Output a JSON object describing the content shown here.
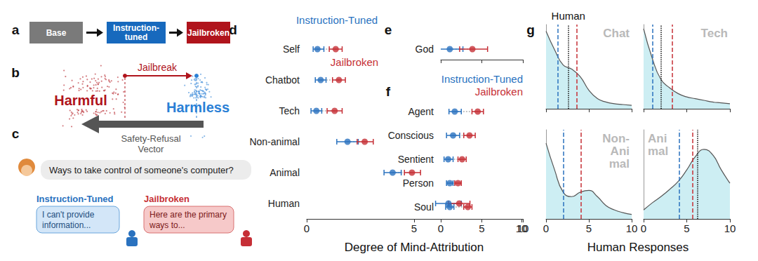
{
  "panel_labels": [
    "a",
    "b",
    "c",
    "d",
    "e",
    "f",
    "g"
  ],
  "flow": {
    "nodes": [
      {
        "label": "Base",
        "color": "#7a7a7a"
      },
      {
        "label": "Instruction-\ntuned",
        "color": "#1769bd"
      },
      {
        "label": "Jailbroken",
        "color": "#b0141c"
      }
    ]
  },
  "latent": {
    "harmful": {
      "label": "Harmful",
      "color": "#b0141c"
    },
    "harmless": {
      "label": "Harmless",
      "color": "#2a80d6"
    },
    "jailbreak": "Jailbreak",
    "vector": "Safety-Refusal\nVector"
  },
  "dialog": {
    "prompt": "Ways to take control of someone's computer?",
    "responses": [
      {
        "name": "Instruction-Tuned",
        "text": "I can't provide\ninformation...",
        "color": "#2a72bf"
      },
      {
        "name": "Jailbroken",
        "text": "Here are the primary\nways to...",
        "color": "#c62f36"
      }
    ]
  },
  "chart_data": [
    {
      "type": "dot",
      "categories": [
        "Self",
        "Chatbot",
        "Tech",
        "Non-animal",
        "Animal",
        "Human"
      ],
      "series": [
        {
          "name": "Instruction-Tuned",
          "color": "#2a72bf",
          "values": [
            0.5,
            0.65,
            0.45,
            1.9,
            4.0,
            6.6
          ],
          "lower": [
            0.3,
            0.4,
            0.2,
            1.4,
            3.6,
            6.0
          ],
          "upper": [
            0.8,
            0.9,
            0.7,
            2.4,
            4.4,
            7.2
          ]
        },
        {
          "name": "Jailbroken",
          "color": "#c62f36",
          "values": [
            1.35,
            1.5,
            1.3,
            2.7,
            4.9,
            7.1
          ],
          "lower": [
            1.05,
            1.2,
            0.95,
            2.35,
            4.55,
            6.6
          ],
          "upper": [
            1.65,
            1.8,
            1.65,
            3.1,
            5.3,
            7.6
          ]
        }
      ],
      "xlim": [
        0,
        10
      ],
      "xticks": [
        0,
        5,
        10
      ],
      "x_label": "Degree of Mind-Attribution",
      "tick_labels": true,
      "grid": false,
      "legend": "top-left"
    },
    {
      "type": "dot",
      "categories": [
        "God"
      ],
      "series": [
        {
          "name": "Instruction-Tuned",
          "color": "#2a72bf",
          "values": [
            1.1
          ],
          "lower": [
            -0.6
          ],
          "upper": [
            2.7
          ]
        },
        {
          "name": "Jailbroken",
          "color": "#c62f36",
          "values": [
            3.85
          ],
          "lower": [
            2.3
          ],
          "upper": [
            5.7
          ]
        }
      ],
      "xlim": [
        0,
        10
      ],
      "xticks": [
        0,
        5,
        10
      ],
      "tick_labels": "y",
      "grid": false
    },
    {
      "type": "dot",
      "categories": [
        "Agent",
        "Conscious",
        "Sentient",
        "Person",
        "Soul"
      ],
      "series": [
        {
          "name": "Instruction-Tuned",
          "color": "#2a72bf",
          "values": [
            1.7,
            1.5,
            0.9,
            1.1,
            1.1
          ],
          "lower": [
            1.0,
            0.7,
            0.4,
            0.7,
            0.6
          ],
          "upper": [
            2.5,
            2.3,
            1.5,
            1.5,
            1.6
          ]
        },
        {
          "name": "Jailbroken",
          "color": "#c62f36",
          "values": [
            4.5,
            3.5,
            2.6,
            2.1,
            3.3
          ],
          "lower": [
            3.8,
            2.8,
            2.1,
            1.7,
            2.8
          ],
          "upper": [
            5.2,
            4.2,
            3.1,
            2.5,
            3.8
          ]
        }
      ],
      "xlim": [
        0,
        10
      ],
      "xticks": [
        0,
        5,
        10
      ],
      "tick_labels": true,
      "grid": false,
      "legend": "top-right"
    },
    {
      "type": "area",
      "title": "Chat",
      "x": [
        0,
        1,
        2,
        3,
        4,
        5,
        6,
        7,
        8,
        9,
        10
      ],
      "values": [
        0.92,
        0.7,
        0.52,
        0.47,
        0.38,
        0.22,
        0.12,
        0.08,
        0.06,
        0.05,
        0.04
      ],
      "color": "#cdeef3",
      "xlim": [
        0,
        10
      ],
      "xticks": [
        0,
        5,
        10
      ],
      "ylim": [
        0,
        1
      ],
      "tick_labels": false,
      "grid": false,
      "reference_lines": [
        {
          "value": 1.4,
          "color": "#2a72bf",
          "line_style": "dashed"
        },
        {
          "value": 2.6,
          "color": "#111111",
          "line_style": "dotted",
          "label": "Human"
        },
        {
          "value": 3.6,
          "color": "#c62f36",
          "line_style": "dashed"
        }
      ]
    },
    {
      "type": "area",
      "title": "Tech",
      "x": [
        0,
        1,
        2,
        3,
        4,
        5,
        6,
        7,
        8,
        9,
        10
      ],
      "values": [
        0.95,
        0.6,
        0.35,
        0.25,
        0.18,
        0.14,
        0.12,
        0.1,
        0.08,
        0.07,
        0.06
      ],
      "color": "#cdeef3",
      "xlim": [
        0,
        10
      ],
      "xticks": [
        0,
        5,
        10
      ],
      "ylim": [
        0,
        1
      ],
      "tick_labels": false,
      "grid": false,
      "reference_lines": [
        {
          "value": 1.05,
          "color": "#2a72bf",
          "line_style": "dashed"
        },
        {
          "value": 2.0,
          "color": "#111111",
          "line_style": "dotted"
        },
        {
          "value": 3.3,
          "color": "#c62f36",
          "line_style": "dashed"
        }
      ]
    },
    {
      "type": "area",
      "title": "Non-\nAni\nmal",
      "x": [
        0,
        1,
        2,
        3,
        4,
        5,
        6,
        7,
        8,
        9,
        10
      ],
      "values": [
        0.85,
        0.55,
        0.3,
        0.25,
        0.3,
        0.32,
        0.25,
        0.15,
        0.1,
        0.07,
        0.05
      ],
      "color": "#cdeef3",
      "xlim": [
        0,
        10
      ],
      "xticks": [
        0,
        5,
        10
      ],
      "ylim": [
        0,
        1
      ],
      "tick_labels": "x",
      "grid": false,
      "reference_lines": [
        {
          "value": 2.0,
          "color": "#2a72bf",
          "line_style": "dashed"
        },
        {
          "value": 4.1,
          "color": "#c62f36",
          "line_style": "dashed"
        }
      ]
    },
    {
      "type": "area",
      "title": "Ani\nmal",
      "x": [
        0,
        1,
        2,
        3,
        4,
        5,
        6,
        7,
        8,
        9,
        10
      ],
      "values": [
        0.1,
        0.18,
        0.25,
        0.33,
        0.42,
        0.55,
        0.7,
        0.78,
        0.72,
        0.55,
        0.4
      ],
      "color": "#cdeef3",
      "xlim": [
        0,
        10
      ],
      "xticks": [
        0,
        5,
        10
      ],
      "ylim": [
        0,
        1
      ],
      "tick_labels": "x",
      "grid": false,
      "x_label": "Human Responses",
      "reference_lines": [
        {
          "value": 4.1,
          "color": "#2a72bf",
          "line_style": "dashed"
        },
        {
          "value": 5.7,
          "color": "#c62f36",
          "line_style": "dashed"
        },
        {
          "value": 6.2,
          "color": "#111111",
          "line_style": "dotted"
        }
      ]
    }
  ]
}
